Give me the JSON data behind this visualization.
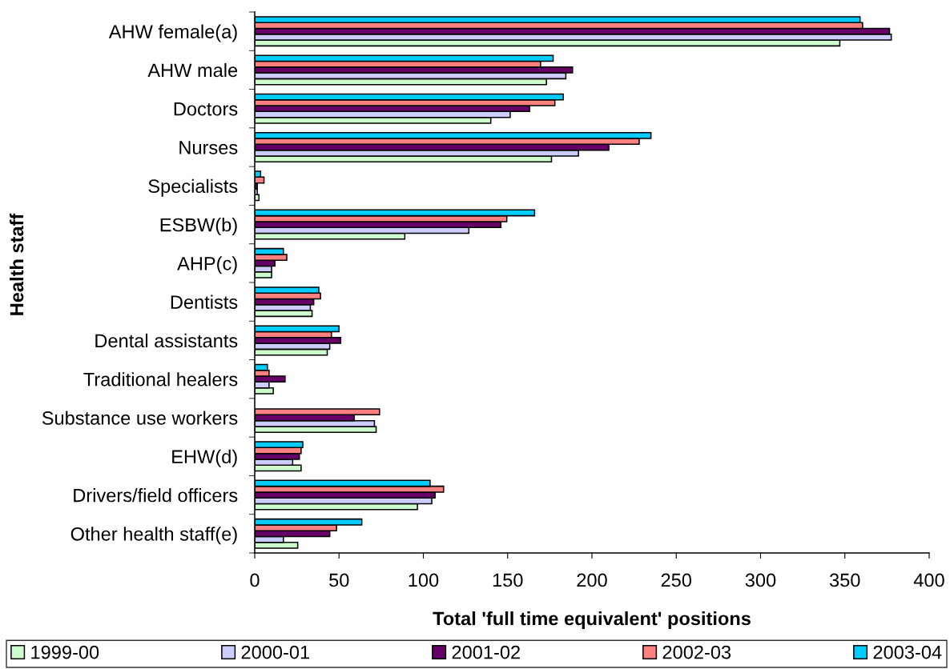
{
  "chart_data": {
    "type": "bar",
    "orientation": "horizontal",
    "xlabel": "Total 'full time equivalent' positions",
    "ylabel": "Health staff",
    "categories": [
      "AHW female(a)",
      "AHW male",
      "Doctors",
      "Nurses",
      "Specialists",
      "ESBW(b)",
      "AHP(c)",
      "Dentists",
      "Dental assistants",
      "Traditional healers",
      "Substance use workers",
      "EHW(d)",
      "Drivers/field officers",
      "Other health staff(e)"
    ],
    "series": [
      {
        "name": "1999-00",
        "color": "#ccffcc",
        "values": [
          347,
          173,
          140,
          176,
          2.5,
          89,
          10,
          34,
          43,
          11,
          72,
          27.5,
          96.5,
          25.5
        ]
      },
      {
        "name": "2000-01",
        "color": "#ccccff",
        "values": [
          377.5,
          184.5,
          151.5,
          192,
          1.5,
          127,
          10,
          33,
          44.5,
          8.5,
          71,
          22.5,
          105,
          17
        ]
      },
      {
        "name": "2001-02",
        "color": "#660066",
        "values": [
          376.5,
          188.5,
          163,
          210,
          1.5,
          146,
          12,
          35,
          51,
          18,
          59,
          26.5,
          107,
          44.5
        ]
      },
      {
        "name": "2002-03",
        "color": "#ff8080",
        "values": [
          360.5,
          169.5,
          178,
          228,
          5.5,
          149.5,
          19,
          39,
          45.5,
          8.5,
          74,
          27.5,
          112,
          48.5
        ]
      },
      {
        "name": "2003-04",
        "color": "#00ccff",
        "values": [
          359,
          177,
          183,
          235,
          3.5,
          166,
          17,
          38,
          50,
          7.5,
          null,
          28.5,
          104,
          63.5
        ]
      }
    ],
    "xlim": [
      0,
      400
    ],
    "xticks": [
      0,
      50,
      100,
      150,
      200,
      250,
      300,
      350,
      400
    ],
    "legend": "bottom"
  }
}
